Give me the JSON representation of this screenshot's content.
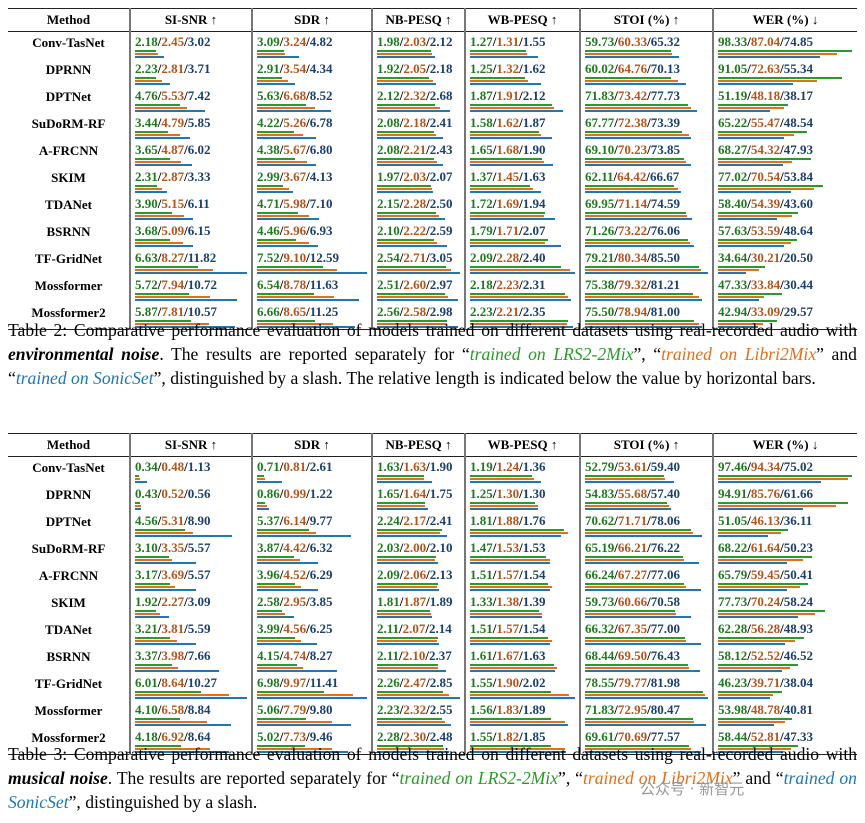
{
  "tables": [
    {
      "separator": "/",
      "columns": [
        "Method",
        "SI-SNR ↑",
        "SDR ↑",
        "NB-PESQ ↑",
        "WB-PESQ ↑",
        "STOI (%) ↑",
        "WER (%) ↓"
      ],
      "rows": [
        {
          "method": "Conv-TasNet",
          "cells": [
            [
              "2.18",
              "2.45",
              "3.02"
            ],
            [
              "3.09",
              "3.24",
              "4.82"
            ],
            [
              "1.98",
              "2.03",
              "2.12"
            ],
            [
              "1.27",
              "1.31",
              "1.55"
            ],
            [
              "59.73",
              "60.33",
              "65.32"
            ],
            [
              "98.33",
              "87.04",
              "74.85"
            ]
          ]
        },
        {
          "method": "DPRNN",
          "cells": [
            [
              "2.23",
              "2.81",
              "3.71"
            ],
            [
              "2.91",
              "3.54",
              "4.34"
            ],
            [
              "1.92",
              "2.05",
              "2.18"
            ],
            [
              "1.25",
              "1.32",
              "1.62"
            ],
            [
              "60.02",
              "64.76",
              "70.13"
            ],
            [
              "91.05",
              "72.63",
              "55.34"
            ]
          ]
        },
        {
          "method": "DPTNet",
          "cells": [
            [
              "4.76",
              "5.53",
              "7.42"
            ],
            [
              "5.63",
              "6.68",
              "8.52"
            ],
            [
              "2.12",
              "2.32",
              "2.68"
            ],
            [
              "1.87",
              "1.91",
              "2.12"
            ],
            [
              "71.83",
              "73.42",
              "77.73"
            ],
            [
              "51.19",
              "48.18",
              "38.17"
            ]
          ]
        },
        {
          "method": "SuDoRM-RF",
          "cells": [
            [
              "3.44",
              "4.79",
              "5.85"
            ],
            [
              "4.22",
              "5.26",
              "6.78"
            ],
            [
              "2.08",
              "2.18",
              "2.41"
            ],
            [
              "1.58",
              "1.62",
              "1.87"
            ],
            [
              "67.77",
              "72.38",
              "73.39"
            ],
            [
              "65.22",
              "55.47",
              "48.54"
            ]
          ]
        },
        {
          "method": "A-FRCNN",
          "cells": [
            [
              "3.65",
              "4.87",
              "6.02"
            ],
            [
              "4.38",
              "5.67",
              "6.80"
            ],
            [
              "2.08",
              "2.21",
              "2.43"
            ],
            [
              "1.65",
              "1.68",
              "1.90"
            ],
            [
              "69.10",
              "70.23",
              "73.85"
            ],
            [
              "68.27",
              "54.32",
              "47.93"
            ]
          ]
        },
        {
          "method": "SKIM",
          "cells": [
            [
              "2.31",
              "2.87",
              "3.33"
            ],
            [
              "2.99",
              "3.67",
              "4.13"
            ],
            [
              "1.97",
              "2.03",
              "2.07"
            ],
            [
              "1.37",
              "1.45",
              "1.63"
            ],
            [
              "62.11",
              "64.42",
              "66.67"
            ],
            [
              "77.02",
              "70.54",
              "53.84"
            ]
          ]
        },
        {
          "method": "TDANet",
          "cells": [
            [
              "3.90",
              "5.15",
              "6.11"
            ],
            [
              "4.71",
              "5.98",
              "7.10"
            ],
            [
              "2.15",
              "2.28",
              "2.50"
            ],
            [
              "1.72",
              "1.69",
              "1.94"
            ],
            [
              "69.95",
              "71.14",
              "74.59"
            ],
            [
              "58.40",
              "54.39",
              "43.60"
            ]
          ]
        },
        {
          "method": "BSRNN",
          "cells": [
            [
              "3.68",
              "5.09",
              "6.15"
            ],
            [
              "4.46",
              "5.96",
              "6.93"
            ],
            [
              "2.10",
              "2.22",
              "2.59"
            ],
            [
              "1.79",
              "1.71",
              "2.07"
            ],
            [
              "71.26",
              "73.22",
              "76.06"
            ],
            [
              "57.63",
              "53.59",
              "48.64"
            ]
          ]
        },
        {
          "method": "TF-GridNet",
          "cells": [
            [
              "6.63",
              "8.27",
              "11.82"
            ],
            [
              "7.52",
              "9.10",
              "12.59"
            ],
            [
              "2.54",
              "2.71",
              "3.05"
            ],
            [
              "2.09",
              "2.28",
              "2.40"
            ],
            [
              "79.21",
              "80.34",
              "85.50"
            ],
            [
              "34.64",
              "30.21",
              "20.50"
            ]
          ]
        },
        {
          "method": "Mossformer",
          "cells": [
            [
              "5.72",
              "7.94",
              "10.72"
            ],
            [
              "6.54",
              "8.78",
              "11.63"
            ],
            [
              "2.51",
              "2.60",
              "2.97"
            ],
            [
              "2.18",
              "2.23",
              "2.31"
            ],
            [
              "75.38",
              "79.32",
              "81.21"
            ],
            [
              "47.33",
              "33.84",
              "30.44"
            ]
          ]
        },
        {
          "method": "Mossformer2",
          "cells": [
            [
              "5.87",
              "7.81",
              "10.57"
            ],
            [
              "6.66",
              "8.65",
              "11.25"
            ],
            [
              "2.56",
              "2.58",
              "2.98"
            ],
            [
              "2.23",
              "2.21",
              "2.35"
            ],
            [
              "75.50",
              "78.94",
              "81.00"
            ],
            [
              "42.94",
              "33.09",
              "29.57"
            ]
          ]
        }
      ],
      "caption": [
        {
          "text": "Table 2: Comparative performance evaluation of models trained on different datasets using real-recorded audio with ",
          "style": "plain"
        },
        {
          "text": "environmental noise",
          "style": "emph"
        },
        {
          "text": ". The results are reported separately for “",
          "style": "plain"
        },
        {
          "text": "trained on LRS2-2Mix",
          "style": "green"
        },
        {
          "text": "”, “",
          "style": "plain"
        },
        {
          "text": "trained on Libri2Mix",
          "style": "orange"
        },
        {
          "text": "” and “",
          "style": "plain"
        },
        {
          "text": "trained on SonicSet",
          "style": "blue"
        },
        {
          "text": "”, distinguished by a slash.  The relative length is indicated below the value by horizontal bars.",
          "style": "plain"
        }
      ]
    },
    {
      "separator": "/",
      "columns": [
        "Method",
        "SI-SNR ↑",
        "SDR ↑",
        "NB-PESQ ↑",
        "WB-PESQ ↑",
        "STOI (%) ↑",
        "WER (%) ↓"
      ],
      "rows": [
        {
          "method": "Conv-TasNet",
          "cells": [
            [
              "0.34",
              "0.48",
              "1.13"
            ],
            [
              "0.71",
              "0.81",
              "2.61"
            ],
            [
              "1.63",
              "1.63",
              "1.90"
            ],
            [
              "1.19",
              "1.24",
              "1.36"
            ],
            [
              "52.79",
              "53.61",
              "59.40"
            ],
            [
              "97.46",
              "94.34",
              "75.02"
            ]
          ]
        },
        {
          "method": "DPRNN",
          "cells": [
            [
              "0.43",
              "0.52",
              "0.56"
            ],
            [
              "0.86",
              "0.99",
              "1.22"
            ],
            [
              "1.65",
              "1.64",
              "1.75"
            ],
            [
              "1.25",
              "1.30",
              "1.30"
            ],
            [
              "54.83",
              "55.68",
              "57.40"
            ],
            [
              "94.91",
              "85.76",
              "61.66"
            ]
          ]
        },
        {
          "method": "DPTNet",
          "cells": [
            [
              "4.56",
              "5.31",
              "8.90"
            ],
            [
              "5.37",
              "6.14",
              "9.77"
            ],
            [
              "2.24",
              "2.17",
              "2.41"
            ],
            [
              "1.81",
              "1.88",
              "1.76"
            ],
            [
              "70.62",
              "71.71",
              "78.06"
            ],
            [
              "51.05",
              "46.13",
              "36.11"
            ]
          ]
        },
        {
          "method": "SuDoRM-RF",
          "cells": [
            [
              "3.10",
              "3.35",
              "5.57"
            ],
            [
              "3.87",
              "4.42",
              "6.32"
            ],
            [
              "2.03",
              "2.00",
              "2.10"
            ],
            [
              "1.47",
              "1.53",
              "1.53"
            ],
            [
              "65.19",
              "66.21",
              "76.22"
            ],
            [
              "68.22",
              "61.64",
              "50.23"
            ]
          ]
        },
        {
          "method": "A-FRCNN",
          "cells": [
            [
              "3.17",
              "3.69",
              "5.57"
            ],
            [
              "3.96",
              "4.52",
              "6.29"
            ],
            [
              "2.09",
              "2.06",
              "2.13"
            ],
            [
              "1.51",
              "1.57",
              "1.54"
            ],
            [
              "66.24",
              "67.27",
              "77.06"
            ],
            [
              "65.79",
              "59.45",
              "50.41"
            ]
          ]
        },
        {
          "method": "SKIM",
          "cells": [
            [
              "1.92",
              "2.27",
              "3.09"
            ],
            [
              "2.58",
              "2.95",
              "3.85"
            ],
            [
              "1.81",
              "1.87",
              "1.89"
            ],
            [
              "1.33",
              "1.38",
              "1.39"
            ],
            [
              "59.73",
              "60.66",
              "70.58"
            ],
            [
              "77.73",
              "70.24",
              "58.24"
            ]
          ]
        },
        {
          "method": "TDANet",
          "cells": [
            [
              "3.21",
              "3.81",
              "5.59"
            ],
            [
              "3.99",
              "4.56",
              "6.25"
            ],
            [
              "2.11",
              "2.07",
              "2.14"
            ],
            [
              "1.51",
              "1.57",
              "1.54"
            ],
            [
              "66.32",
              "67.35",
              "77.00"
            ],
            [
              "62.28",
              "56.28",
              "48.93"
            ]
          ]
        },
        {
          "method": "BSRNN",
          "cells": [
            [
              "3.37",
              "3.98",
              "7.66"
            ],
            [
              "4.15",
              "4.74",
              "8.27"
            ],
            [
              "2.11",
              "2.10",
              "2.37"
            ],
            [
              "1.61",
              "1.67",
              "1.63"
            ],
            [
              "68.44",
              "69.50",
              "76.43"
            ],
            [
              "58.12",
              "52.52",
              "46.52"
            ]
          ]
        },
        {
          "method": "TF-GridNet",
          "cells": [
            [
              "6.01",
              "8.64",
              "10.27"
            ],
            [
              "6.98",
              "9.97",
              "11.41"
            ],
            [
              "2.26",
              "2.47",
              "2.85"
            ],
            [
              "1.55",
              "1.90",
              "2.02"
            ],
            [
              "78.55",
              "79.77",
              "81.98"
            ],
            [
              "46.23",
              "39.71",
              "38.04"
            ]
          ]
        },
        {
          "method": "Mossformer",
          "cells": [
            [
              "4.10",
              "6.58",
              "8.84"
            ],
            [
              "5.06",
              "7.79",
              "9.80"
            ],
            [
              "2.23",
              "2.32",
              "2.55"
            ],
            [
              "1.56",
              "1.83",
              "1.89"
            ],
            [
              "71.83",
              "72.95",
              "80.47"
            ],
            [
              "53.98",
              "48.78",
              "40.81"
            ]
          ]
        },
        {
          "method": "Mossformer2",
          "cells": [
            [
              "4.18",
              "6.92",
              "8.64"
            ],
            [
              "5.02",
              "7.73",
              "9.46"
            ],
            [
              "2.28",
              "2.30",
              "2.48"
            ],
            [
              "1.55",
              "1.82",
              "1.85"
            ],
            [
              "69.61",
              "70.69",
              "77.57"
            ],
            [
              "58.44",
              "52.81",
              "47.33"
            ]
          ]
        }
      ],
      "caption": [
        {
          "text": "Table 3: Comparative performance evaluation of models trained on different datasets using real-recorded audio with ",
          "style": "plain"
        },
        {
          "text": "musical noise",
          "style": "emph"
        },
        {
          "text": ". The results are reported separately for “",
          "style": "plain"
        },
        {
          "text": "trained on LRS2-2Mix",
          "style": "green"
        },
        {
          "text": "”, “",
          "style": "plain"
        },
        {
          "text": "trained on Libri2Mix",
          "style": "orange"
        },
        {
          "text": "” and “",
          "style": "plain"
        },
        {
          "text": "trained on SonicSet",
          "style": "blue"
        },
        {
          "text": "”, distinguished by a slash.",
          "style": "plain"
        }
      ]
    }
  ],
  "watermark": "公众号 · 新智元"
}
